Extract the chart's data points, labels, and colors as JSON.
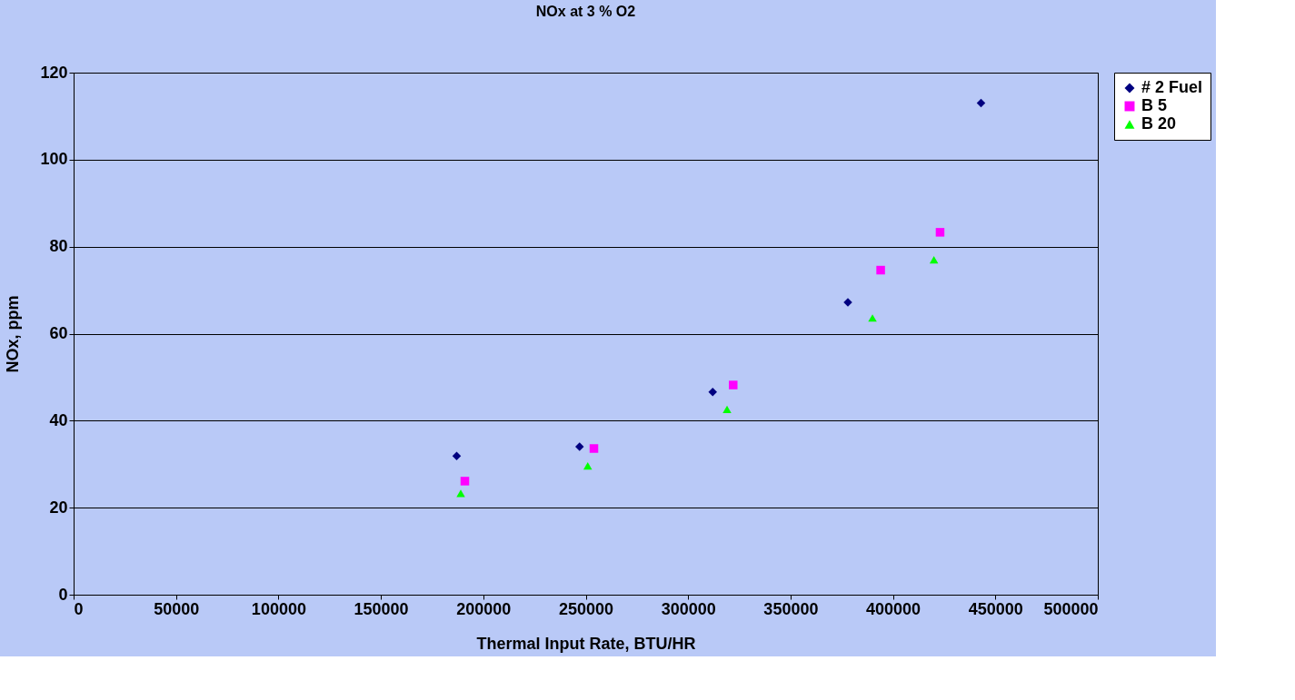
{
  "chart_data": {
    "type": "scatter",
    "title": "NOx at 3 % O2",
    "xlabel": "Thermal Input Rate, BTU/HR",
    "ylabel": "NOx, ppm",
    "xlim": [
      0,
      500000
    ],
    "xticks": [
      0,
      50000,
      100000,
      150000,
      200000,
      250000,
      300000,
      350000,
      400000,
      450000,
      500000
    ],
    "ylim": [
      0,
      120
    ],
    "yticks": [
      0,
      20,
      40,
      60,
      80,
      100,
      120
    ],
    "grid": "y",
    "legend": "right",
    "series": [
      {
        "name": "# 2 Fuel",
        "color": "#000080",
        "marker": "diamond",
        "x": [
          187000,
          247000,
          312000,
          378000,
          443000
        ],
        "values": [
          31.9,
          34.0,
          46.6,
          67.2,
          113.0
        ]
      },
      {
        "name": "B 5",
        "color": "#ff00ff",
        "marker": "square",
        "x": [
          191000,
          254000,
          322000,
          394000,
          423000
        ],
        "values": [
          26.1,
          33.6,
          48.2,
          74.6,
          83.3
        ]
      },
      {
        "name": "B 20",
        "color": "#00ff00",
        "marker": "triangle",
        "x": [
          189000,
          251000,
          319000,
          390000,
          420000
        ],
        "values": [
          23.3,
          29.6,
          42.6,
          63.6,
          77.0
        ]
      }
    ]
  }
}
